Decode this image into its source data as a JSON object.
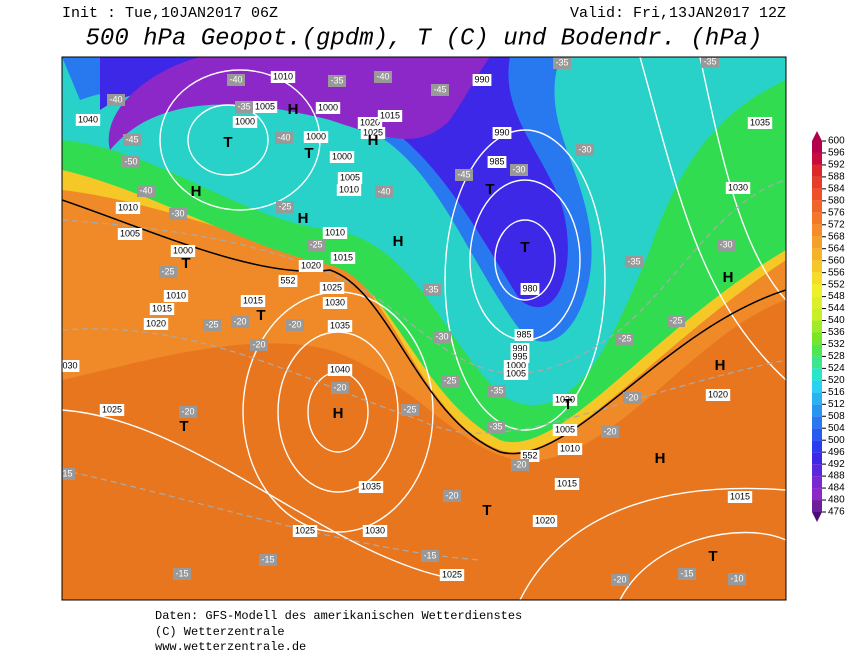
{
  "header": {
    "init": "Init : Tue,10JAN2017 06Z",
    "valid": "Valid: Fri,13JAN2017 12Z",
    "title": "500 hPa Geopot.(gpdm), T (C) und Bodendr. (hPa)"
  },
  "footer": [
    "Daten: GFS-Modell des amerikanischen Wetterdienstes",
    "(C) Wetterzentrale",
    "www.wetterzentrale.de"
  ],
  "colorbar": {
    "ticks": [
      600,
      596,
      592,
      588,
      584,
      580,
      576,
      572,
      568,
      564,
      560,
      556,
      552,
      548,
      544,
      540,
      536,
      532,
      528,
      524,
      520,
      516,
      512,
      508,
      504,
      500,
      496,
      492,
      488,
      484,
      480,
      476
    ],
    "colors": [
      "#b4004b",
      "#c80a3c",
      "#dc2828",
      "#e63c28",
      "#f05028",
      "#f06428",
      "#f57828",
      "#f58c28",
      "#f5a028",
      "#f5b428",
      "#f5c828",
      "#f5dc28",
      "#f0f028",
      "#dcf028",
      "#c8f028",
      "#a0eb28",
      "#78e628",
      "#50e650",
      "#3ce68c",
      "#28e6c8",
      "#28d2f0",
      "#28b4f0",
      "#2896f0",
      "#2878f0",
      "#285af0",
      "#283cf0",
      "#3c28e6",
      "#5a28dc",
      "#7828d2",
      "#8c28c8",
      "#6e1e9b"
    ]
  },
  "pressure_labels": [
    "1040",
    "1010",
    "1005",
    "1000",
    "1000",
    "1000",
    "1020",
    "1025",
    "1015",
    "1000",
    "1005",
    "1010",
    "990",
    "990",
    "985",
    "1035",
    "1030",
    "1010",
    "1005",
    "1000",
    "1010",
    "1015",
    "1020",
    "1025",
    "1030",
    "1035",
    "1015",
    "1010",
    "1015",
    "1020",
    "1040",
    "980",
    "985",
    "990",
    "995",
    "1000",
    "1005",
    "1010",
    "1005",
    "1020",
    "1015",
    "1020",
    "1035",
    "1030",
    "1025",
    "1025",
    "1025",
    "1020",
    "1015",
    "030",
    "552",
    "552"
  ],
  "temperature_labels": [
    "-40",
    "-40",
    "-35",
    "-40",
    "-45",
    "-35",
    "-40",
    "-50",
    "-45",
    "-40",
    "-30",
    "-40",
    "-45",
    "-35",
    "-30",
    "-30",
    "-35",
    "-30",
    "-35",
    "-25",
    "-25",
    "-35",
    "-30",
    "-25",
    "-35",
    "-35",
    "-25",
    "-20",
    "-20",
    "-20",
    "-20",
    "-15",
    "-15",
    "-15",
    "-15",
    "-20",
    "-20",
    "-20",
    "-20",
    "-25",
    "-25",
    "-20",
    "-15",
    "-20",
    "-10",
    "-25",
    "-25"
  ],
  "centers": [
    "H",
    "T",
    "H",
    "T",
    "H",
    "H",
    "H",
    "T",
    "T",
    "H",
    "T",
    "T",
    "T",
    "H",
    "T",
    "H",
    "H",
    "T",
    "T"
  ]
}
